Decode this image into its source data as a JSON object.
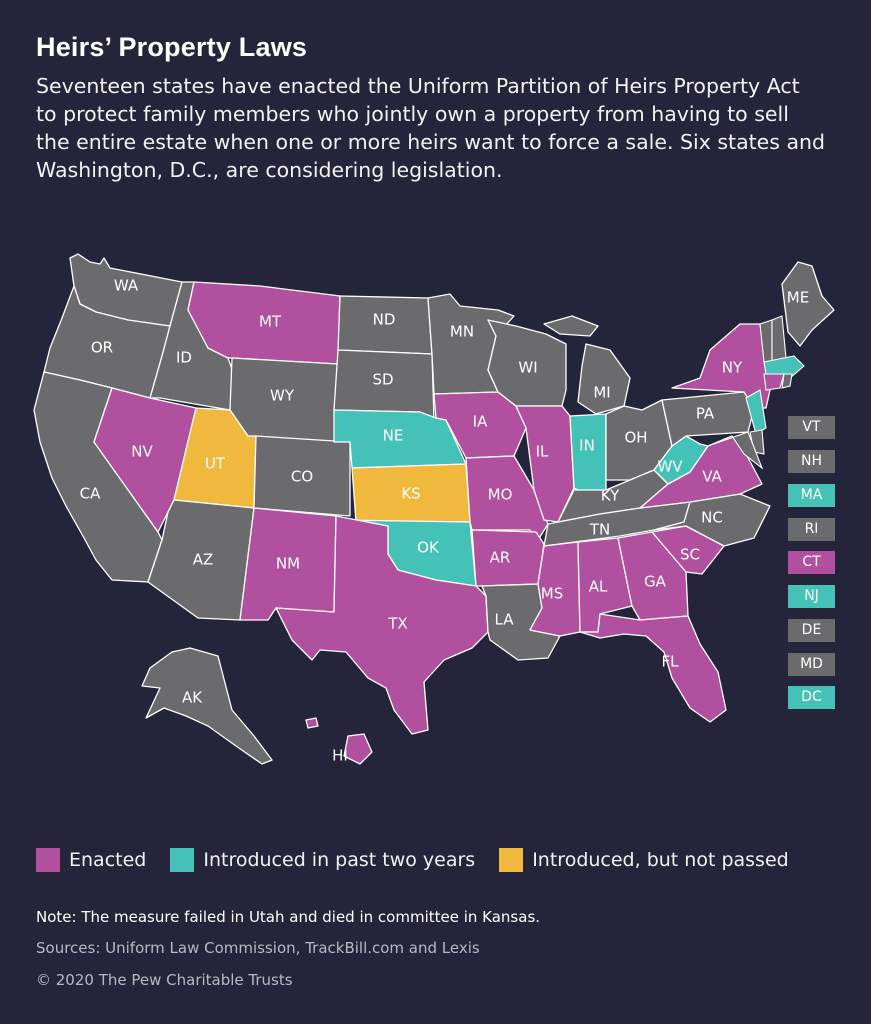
{
  "header": {
    "title": "Heirs’ Property Laws",
    "subtitle": "Seventeen states have enacted the Uniform Partition of Heirs Property Act to protect family members who jointly own a property from having to sell the entire estate when one or more heirs want to force a sale. Six states and Washington, D.C., are considering legislation."
  },
  "colors": {
    "enacted": "#b0509e",
    "introduced": "#45c2b7",
    "not_passed": "#f0b83c",
    "none": "#6b6b6e",
    "background": "#24243a"
  },
  "legend": [
    {
      "key": "enacted",
      "label": "Enacted"
    },
    {
      "key": "introduced",
      "label": "Introduced in past two years"
    },
    {
      "key": "not_passed",
      "label": "Introduced, but not passed"
    }
  ],
  "states": [
    {
      "abbr": "WA",
      "status": "none"
    },
    {
      "abbr": "OR",
      "status": "none"
    },
    {
      "abbr": "CA",
      "status": "none"
    },
    {
      "abbr": "ID",
      "status": "none"
    },
    {
      "abbr": "NV",
      "status": "enacted"
    },
    {
      "abbr": "MT",
      "status": "enacted"
    },
    {
      "abbr": "WY",
      "status": "none"
    },
    {
      "abbr": "UT",
      "status": "not_passed"
    },
    {
      "abbr": "AZ",
      "status": "none"
    },
    {
      "abbr": "CO",
      "status": "none"
    },
    {
      "abbr": "NM",
      "status": "enacted"
    },
    {
      "abbr": "ND",
      "status": "none"
    },
    {
      "abbr": "SD",
      "status": "none"
    },
    {
      "abbr": "NE",
      "status": "introduced"
    },
    {
      "abbr": "KS",
      "status": "not_passed"
    },
    {
      "abbr": "OK",
      "status": "introduced"
    },
    {
      "abbr": "TX",
      "status": "enacted"
    },
    {
      "abbr": "MN",
      "status": "none"
    },
    {
      "abbr": "IA",
      "status": "enacted"
    },
    {
      "abbr": "MO",
      "status": "enacted"
    },
    {
      "abbr": "AR",
      "status": "enacted"
    },
    {
      "abbr": "LA",
      "status": "none"
    },
    {
      "abbr": "WI",
      "status": "none"
    },
    {
      "abbr": "IL",
      "status": "enacted"
    },
    {
      "abbr": "MI",
      "status": "none"
    },
    {
      "abbr": "IN",
      "status": "introduced"
    },
    {
      "abbr": "OH",
      "status": "none"
    },
    {
      "abbr": "KY",
      "status": "none"
    },
    {
      "abbr": "TN",
      "status": "none"
    },
    {
      "abbr": "MS",
      "status": "enacted"
    },
    {
      "abbr": "AL",
      "status": "enacted"
    },
    {
      "abbr": "GA",
      "status": "enacted"
    },
    {
      "abbr": "FL",
      "status": "enacted"
    },
    {
      "abbr": "SC",
      "status": "enacted"
    },
    {
      "abbr": "NC",
      "status": "none"
    },
    {
      "abbr": "VA",
      "status": "enacted"
    },
    {
      "abbr": "WV",
      "status": "introduced"
    },
    {
      "abbr": "PA",
      "status": "none"
    },
    {
      "abbr": "NY",
      "status": "enacted"
    },
    {
      "abbr": "ME",
      "status": "none"
    },
    {
      "abbr": "AK",
      "status": "none"
    },
    {
      "abbr": "HI",
      "status": "enacted"
    }
  ],
  "small_states": [
    {
      "abbr": "VT",
      "status": "none"
    },
    {
      "abbr": "NH",
      "status": "none"
    },
    {
      "abbr": "MA",
      "status": "introduced"
    },
    {
      "abbr": "RI",
      "status": "none"
    },
    {
      "abbr": "CT",
      "status": "enacted"
    },
    {
      "abbr": "NJ",
      "status": "introduced"
    },
    {
      "abbr": "DE",
      "status": "none"
    },
    {
      "abbr": "MD",
      "status": "none"
    },
    {
      "abbr": "DC",
      "status": "introduced"
    }
  ],
  "footer": {
    "note": "Note: The measure failed in Utah and died in committee in Kansas.",
    "sources": "Sources: Uniform Law Commission, TrackBill.com and Lexis",
    "copyright": "© 2020 The Pew Charitable Trusts"
  }
}
